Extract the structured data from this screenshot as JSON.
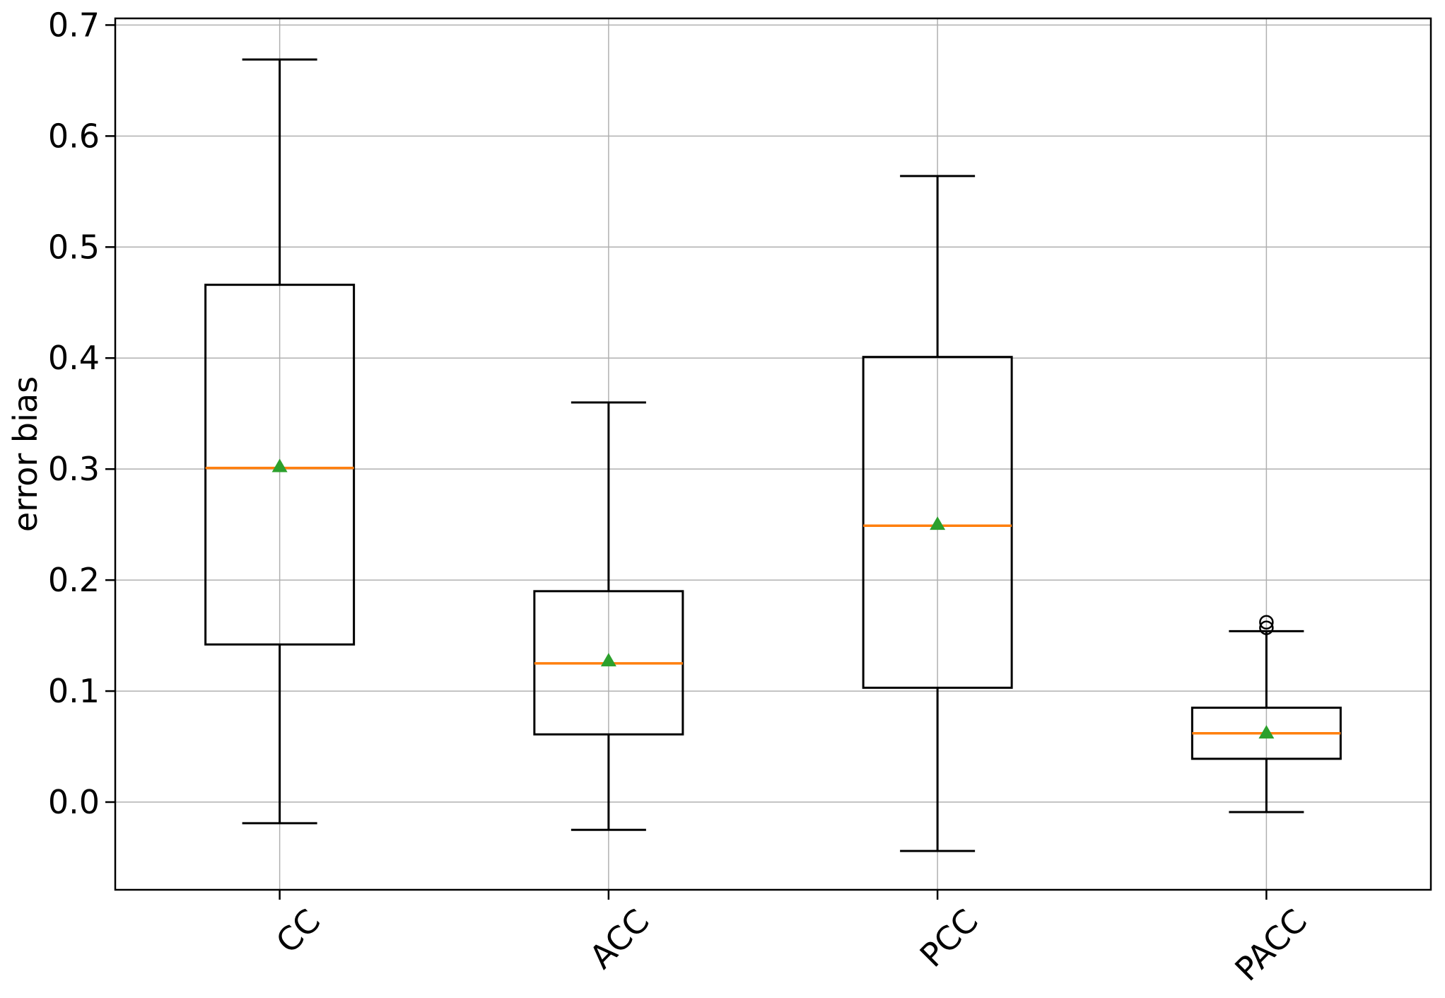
{
  "chart_data": {
    "type": "boxplot",
    "title": "",
    "xlabel": "",
    "ylabel": "error bias",
    "categories": [
      "CC",
      "ACC",
      "PCC",
      "PACC"
    ],
    "yticks": [
      0.0,
      0.1,
      0.2,
      0.3,
      0.4,
      0.5,
      0.6,
      0.7
    ],
    "ylim": [
      -0.079,
      0.706
    ],
    "grid": true,
    "legend": "none",
    "series": [
      {
        "label": "CC",
        "whisker_low": -0.019,
        "q1": 0.142,
        "median": 0.301,
        "mean": 0.303,
        "q3": 0.466,
        "whisker_high": 0.669,
        "outliers": []
      },
      {
        "label": "ACC",
        "whisker_low": -0.025,
        "q1": 0.061,
        "median": 0.125,
        "mean": 0.128,
        "q3": 0.19,
        "whisker_high": 0.36,
        "outliers": []
      },
      {
        "label": "PCC",
        "whisker_low": -0.044,
        "q1": 0.103,
        "median": 0.249,
        "mean": 0.251,
        "q3": 0.401,
        "whisker_high": 0.564,
        "outliers": []
      },
      {
        "label": "PACC",
        "whisker_low": -0.009,
        "q1": 0.039,
        "median": 0.062,
        "mean": 0.063,
        "q3": 0.085,
        "whisker_high": 0.154,
        "outliers": [
          0.162,
          0.157
        ]
      }
    ],
    "colors": {
      "box": "#000000",
      "whisker": "#000000",
      "median": "#ff7f0e",
      "mean": "#2ca02c",
      "outlier": "#000000",
      "grid": "#b0b0b0",
      "background": "#ffffff"
    }
  }
}
